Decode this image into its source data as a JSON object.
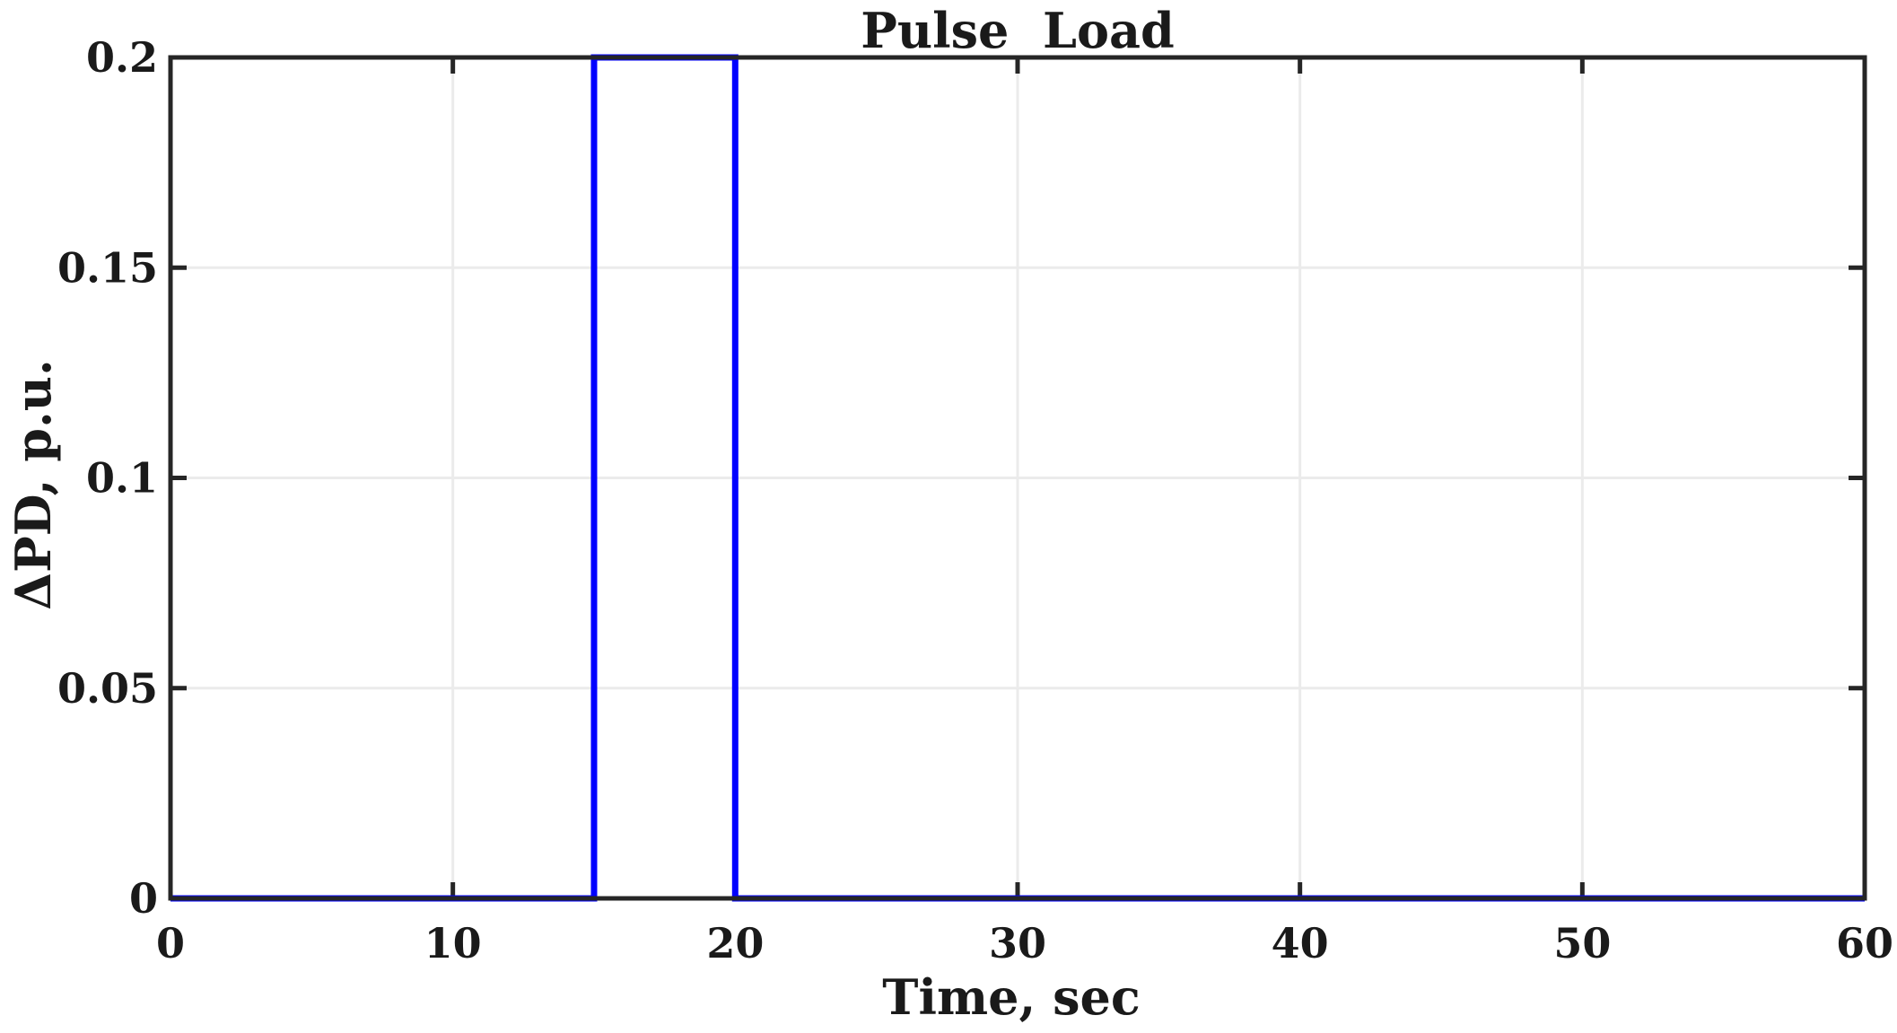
{
  "chart_data": {
    "type": "line",
    "title": "Pulse  Load",
    "xlabel": "Time, sec",
    "ylabel": "ΔPD, p.u.",
    "xlim": [
      0,
      60
    ],
    "ylim": [
      0,
      0.2
    ],
    "x_ticks": [
      0,
      10,
      20,
      30,
      40,
      50,
      60
    ],
    "y_ticks": [
      0,
      0.05,
      0.1,
      0.15,
      0.2
    ],
    "x_tick_labels": [
      "0",
      "10",
      "20",
      "30",
      "40",
      "50",
      "60"
    ],
    "y_tick_labels": [
      "0",
      "0.05",
      "0.1",
      "0.15",
      "0.2"
    ],
    "grid": true,
    "series": [
      {
        "color": "#0000ff",
        "x": [
          0,
          15,
          15,
          20,
          20,
          60
        ],
        "y": [
          0,
          0,
          0.2,
          0.2,
          0,
          0
        ]
      }
    ]
  }
}
